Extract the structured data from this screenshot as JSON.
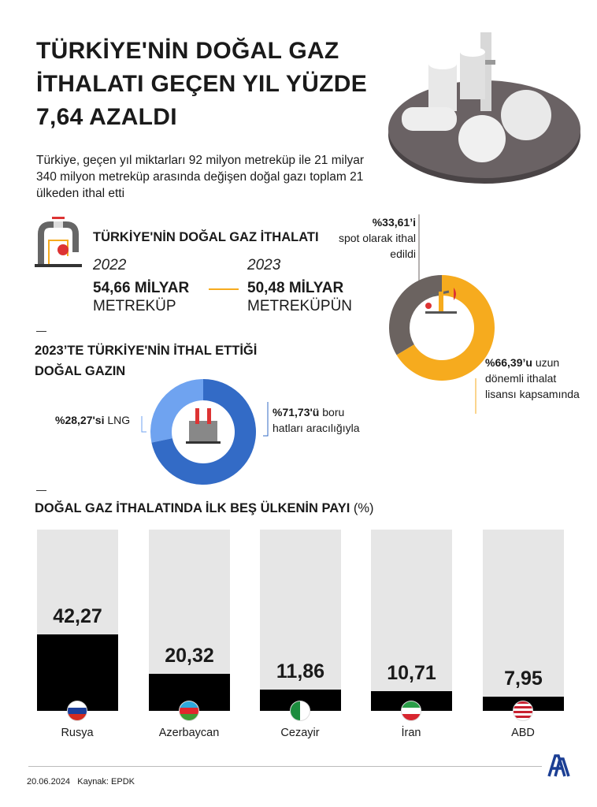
{
  "title": "TÜRKİYE'NİN DOĞAL GAZ İTHALATI GEÇEN YIL YÜZDE 7,64 AZALDI",
  "subtitle": "Türkiye, geçen yıl miktarları 92 milyon metreküp ile 21 milyar 340 milyon metreküp arasında değişen doğal gazı toplam 21 ülkeden ithal etti",
  "imports": {
    "heading": "TÜRKİYE'NİN DOĞAL GAZ İTHALATI",
    "y1": {
      "year": "2022",
      "value": "54,66 MİLYAR",
      "unit": "METREKÜP"
    },
    "y2": {
      "year": "2023",
      "value": "50,48 MİLYAR",
      "unit": "METREKÜPÜN"
    }
  },
  "section2_heading": "2023’TE TÜRKİYE'NİN İTHAL ETTİĞİ DOĞAL GAZIN",
  "section3_heading": "DOĞAL GAZ İTHALATINDA İLK BEŞ ÜLKENİN PAYI",
  "section3_unit": "(%)",
  "chart_data": [
    {
      "type": "pie",
      "style": "donut",
      "slices": [
        {
          "label_bold": "%33,61’i",
          "label": "spot olarak ithal edildi",
          "value": 33.61,
          "color": "#6b6360"
        },
        {
          "label_bold": "%66,39’u",
          "label": "uzun dönemli ithalat lisansı kapsamında",
          "value": 66.39,
          "color": "#f6ab1e"
        }
      ]
    },
    {
      "type": "pie",
      "style": "donut",
      "slices": [
        {
          "label_bold": "%28,27'si",
          "label": "LNG",
          "value": 28.27,
          "color": "#6fa3f0"
        },
        {
          "label_bold": "%71,73'ü",
          "label": "boru hatları aracılığıyla",
          "value": 71.73,
          "color": "#336bc6"
        }
      ]
    },
    {
      "type": "bar",
      "categories": [
        "Rusya",
        "Azerbaycan",
        "Cezayir",
        "İran",
        "ABD"
      ],
      "values": [
        42.27,
        20.32,
        11.86,
        10.71,
        7.95
      ],
      "value_labels": [
        "42,27",
        "20,32",
        "11,86",
        "10,71",
        "7,95"
      ],
      "ylim": [
        0,
        100
      ],
      "bar_color": "#000000",
      "background_color": "#e6e6e6"
    }
  ],
  "footer": {
    "date": "20.06.2024",
    "source": "Kaynak: EPDK",
    "logo": "AA"
  }
}
